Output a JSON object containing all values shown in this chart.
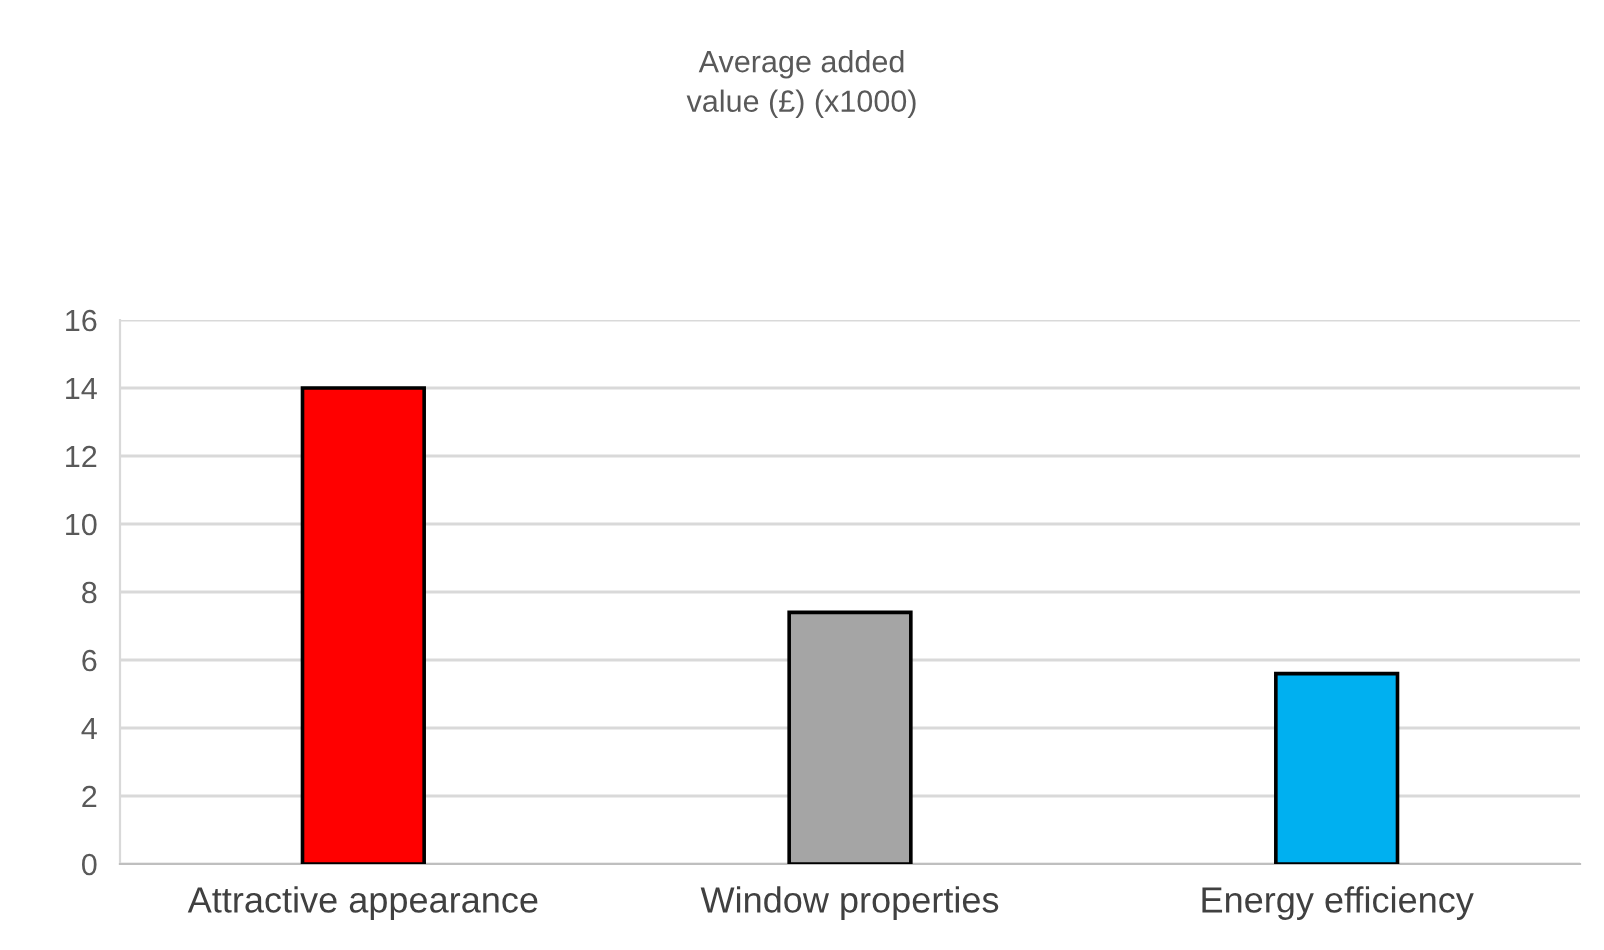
{
  "chart_data": {
    "type": "bar",
    "title": "Average added\nvalue (£) (x1000)",
    "categories": [
      "Attractive appearance",
      "Window properties",
      "Energy efficiency"
    ],
    "values": [
      14,
      7.4,
      5.6
    ],
    "colors": [
      "#ff0000",
      "#a5a5a5",
      "#00b0f0"
    ],
    "ylim": [
      0,
      16
    ],
    "yticks": [
      0,
      2,
      4,
      6,
      8,
      10,
      12,
      14,
      16
    ],
    "grid": "y",
    "legend": false
  }
}
